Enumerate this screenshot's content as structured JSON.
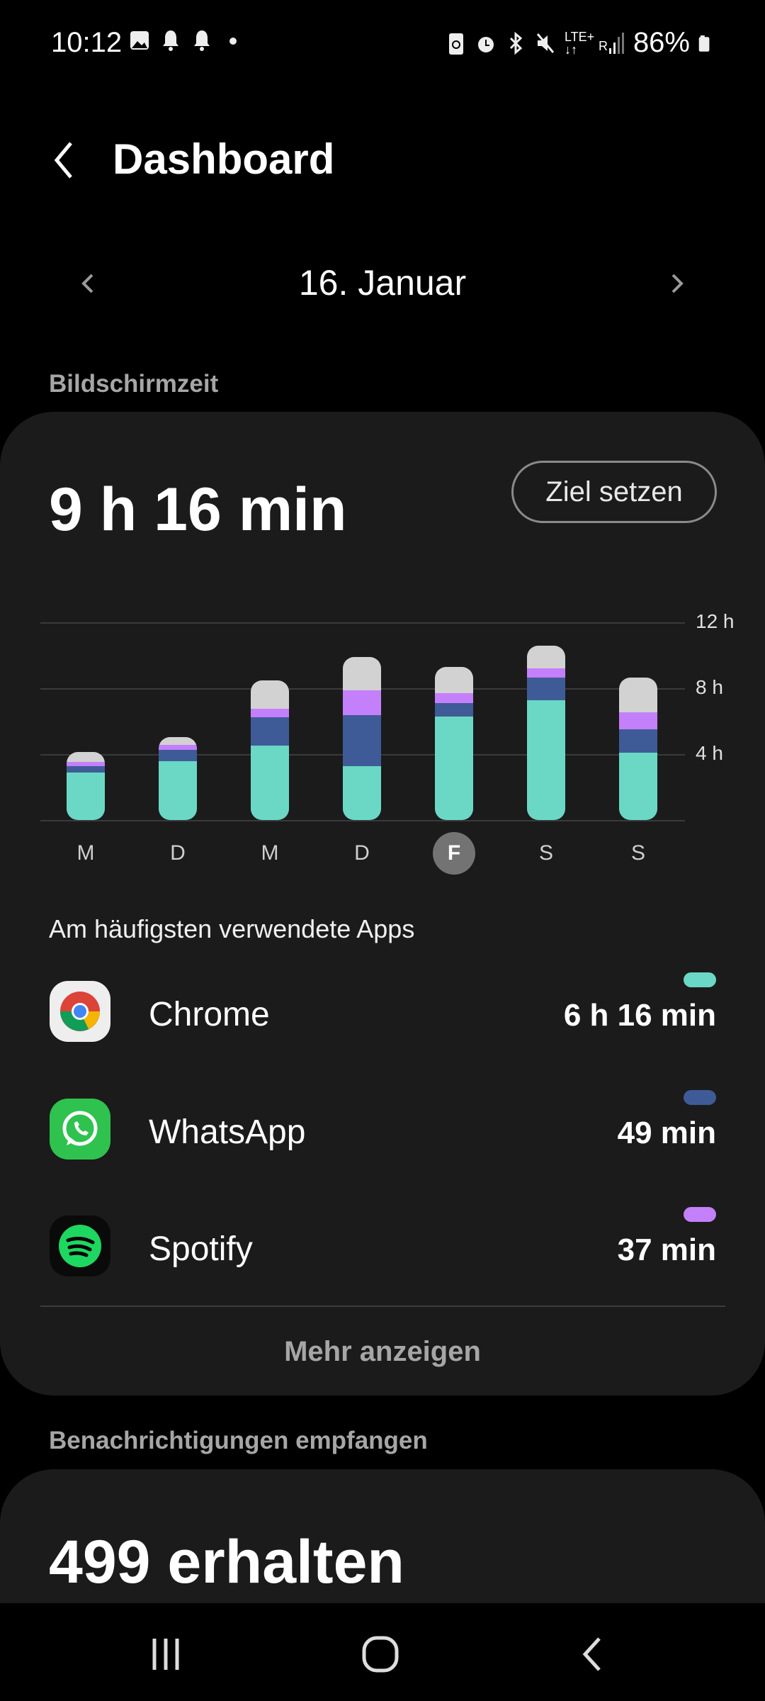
{
  "status_bar": {
    "time": "10:12",
    "battery": "86%",
    "network": "LTE+",
    "roaming": "R",
    "left_icons": [
      "gallery-icon",
      "bell-icon",
      "bell-icon",
      "dot-icon"
    ],
    "right_icons": [
      "battery-saver-icon",
      "alarm-icon",
      "bluetooth-icon",
      "mute-icon",
      "lte-icon",
      "signal-icon",
      "battery-icon"
    ]
  },
  "header": {
    "title": "Dashboard"
  },
  "date_nav": {
    "date": "16. Januar"
  },
  "screen_time": {
    "section_label": "Bildschirmzeit",
    "total": "9 h 16 min",
    "goal_button": "Ziel setzen",
    "more_button": "Mehr anzeigen",
    "apps_heading": "Am häufigsten verwendete Apps",
    "apps": [
      {
        "name": "Chrome",
        "time": "6 h 16 min",
        "color": "#6ad8c4"
      },
      {
        "name": "WhatsApp",
        "time": "49 min",
        "color": "#3f5b97"
      },
      {
        "name": "Spotify",
        "time": "37 min",
        "color": "#c47ffa"
      }
    ]
  },
  "chart_data": {
    "type": "bar",
    "stacked": true,
    "categories": [
      "M",
      "D",
      "M",
      "D",
      "F",
      "S",
      "S"
    ],
    "selected": "F",
    "y_ticks": [
      "12 h",
      "8 h",
      "4 h"
    ],
    "ylim": [
      0,
      12
    ],
    "grid": true,
    "series": [
      {
        "name": "Chrome",
        "color": "#6ad8c4",
        "values": [
          2.9,
          3.55,
          4.5,
          3.25,
          6.27,
          7.26,
          4.07
        ]
      },
      {
        "name": "WhatsApp",
        "color": "#3f5b97",
        "values": [
          0.37,
          0.69,
          1.72,
          3.1,
          0.82,
          1.38,
          1.42
        ]
      },
      {
        "name": "Spotify",
        "color": "#c47ffa",
        "values": [
          0.26,
          0.34,
          0.52,
          1.51,
          0.62,
          0.56,
          1.03
        ]
      },
      {
        "color": "#d2d2d2",
        "values": [
          0.62,
          0.46,
          1.74,
          2.05,
          1.56,
          1.39,
          2.14
        ]
      }
    ]
  },
  "notifications": {
    "section_label": "Benachrichtigungen empfangen",
    "total": "499 erhalten"
  }
}
